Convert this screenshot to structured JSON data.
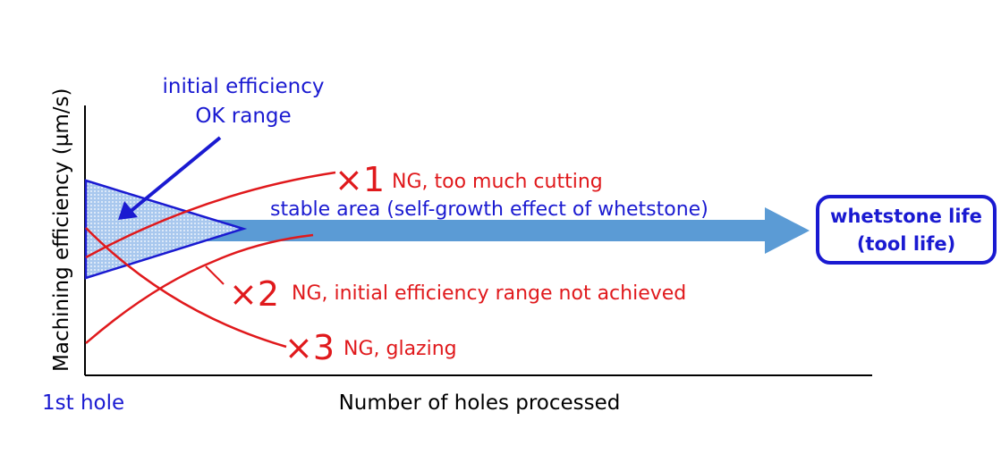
{
  "labels": {
    "ylabel": "Machining efficiency (µm/s)",
    "xlabel": "Number of holes processed",
    "x_start": "1st hole",
    "ok_range_line1": "initial efficiency",
    "ok_range_line2": "OK range",
    "stable_area": "stable area (self-growth effect of whetstone)",
    "life_line1": "whetstone life",
    "life_line2": "(tool life)"
  },
  "cases": [
    {
      "mark": "×1",
      "text": "NG, too much cutting"
    },
    {
      "mark": "×2",
      "text": "NG, initial efficiency range not achieved"
    },
    {
      "mark": "×3",
      "text": "NG, glazing"
    }
  ],
  "colors": {
    "red": "#e0191c",
    "blue": "#1a1ad1",
    "arrow": "#5b9bd5",
    "axis": "#000000",
    "fill": "#7aa9e0"
  }
}
